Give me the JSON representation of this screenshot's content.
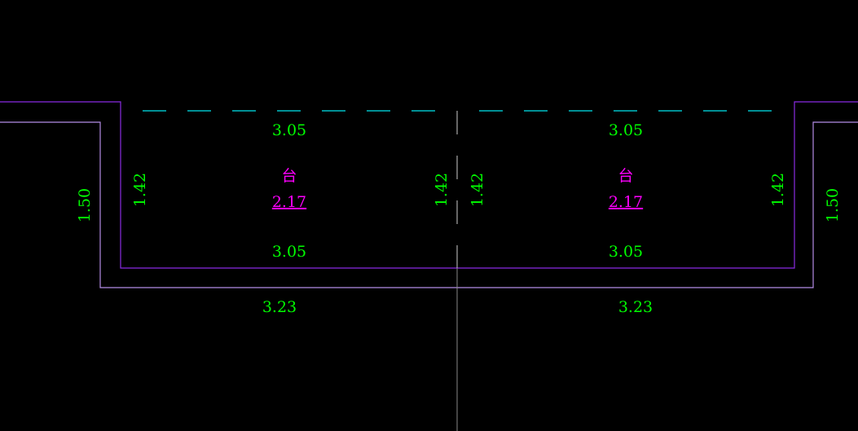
{
  "colors": {
    "background": "#000000",
    "dimension_text": "#00ff00",
    "room_text": "#ff00ff",
    "inner_wall": "#8a2be2",
    "outer_wall": "#b48ce6",
    "axis_dashed": "#00e5ee",
    "axis_line": "#888888"
  },
  "rooms": [
    {
      "name": "台",
      "area": "2.17",
      "top_width": "3.05",
      "bottom_width": "3.05",
      "left_height": "1.42",
      "right_height": "1.42",
      "outer_width": "3.23",
      "outer_height": "1.50"
    },
    {
      "name": "台",
      "area": "2.17",
      "top_width": "3.05",
      "bottom_width": "3.05",
      "left_height": "1.42",
      "right_height": "1.42",
      "outer_width": "3.23",
      "outer_height": "1.50"
    }
  ]
}
